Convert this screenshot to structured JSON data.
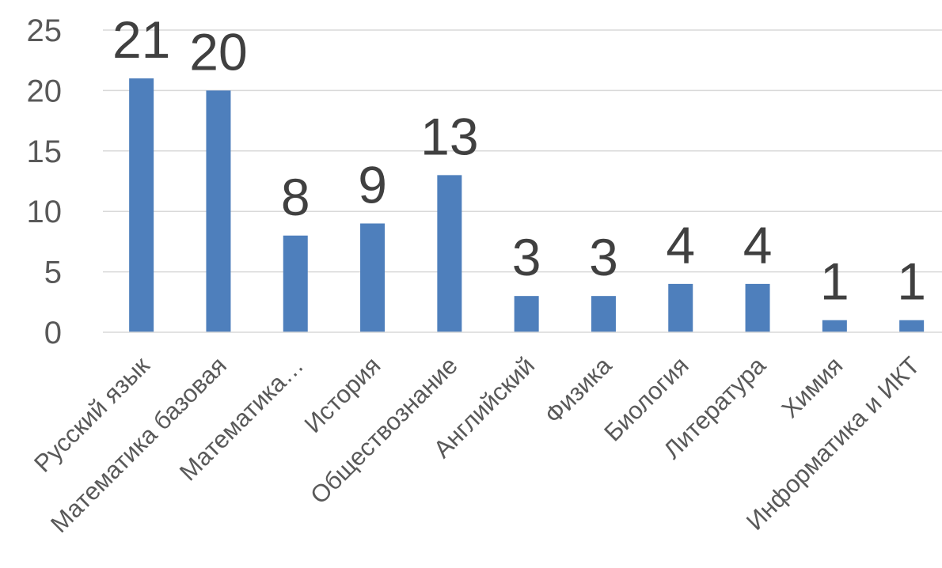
{
  "chart_data": {
    "type": "bar",
    "title": "",
    "xlabel": "",
    "ylabel": "",
    "categories": [
      "Русский язык",
      "Математика базовая",
      "Математика…",
      "История",
      "Обществознание",
      "Английский",
      "Физика",
      "Биология",
      "Литература",
      "Химия",
      "Информатика  и ИКТ"
    ],
    "values": [
      21,
      20,
      8,
      9,
      13,
      3,
      3,
      4,
      4,
      1,
      1
    ],
    "data_labels": [
      "21",
      "20",
      "8",
      "9",
      "13",
      "3",
      "3",
      "4",
      "4",
      "1",
      "1"
    ],
    "ylim": [
      0,
      25
    ],
    "yticks": [
      "0",
      "5",
      "10",
      "15",
      "20",
      "25"
    ],
    "grid": true,
    "legend": "none",
    "colors": {
      "bar": "#4e7fbc",
      "grid": "#d9d9d9",
      "tick_text": "#595959",
      "data_label_text": "#404040"
    }
  }
}
